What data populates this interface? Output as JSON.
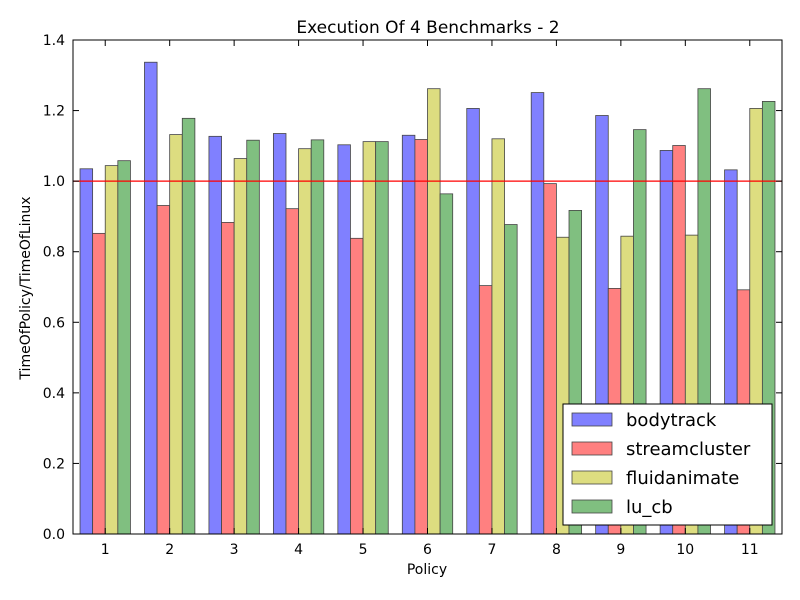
{
  "chart_data": {
    "type": "bar",
    "title": "Execution Of 4 Benchmarks - 2",
    "xlabel": "Policy",
    "ylabel": "TimeOfPolicy/TimeOfLinux",
    "ylim": [
      0,
      1.4
    ],
    "yticks": [
      "0.0",
      "0.2",
      "0.4",
      "0.6",
      "0.8",
      "1.0",
      "1.2",
      "1.4"
    ],
    "categories": [
      "1",
      "2",
      "3",
      "4",
      "5",
      "6",
      "7",
      "8",
      "9",
      "10",
      "11"
    ],
    "reference_line": {
      "y": 1.0,
      "color": "#ff0000"
    },
    "legend_position": "lower-right",
    "grid": false,
    "series": [
      {
        "name": "bodytrack",
        "color": "#8080ff",
        "values": [
          1.035,
          1.337,
          1.127,
          1.135,
          1.103,
          1.13,
          1.206,
          1.251,
          1.186,
          1.087,
          1.032
        ]
      },
      {
        "name": "streamcluster",
        "color": "#ff8080",
        "values": [
          0.852,
          0.931,
          0.883,
          0.922,
          0.838,
          1.118,
          0.704,
          0.993,
          0.696,
          1.101,
          0.692
        ]
      },
      {
        "name": "fluidanimate",
        "color": "#dddd80",
        "values": [
          1.044,
          1.132,
          1.064,
          1.092,
          1.112,
          1.262,
          1.12,
          0.841,
          0.844,
          0.847,
          1.206
        ]
      },
      {
        "name": "lu_cb",
        "color": "#80bf80",
        "values": [
          1.058,
          1.178,
          1.116,
          1.117,
          1.112,
          0.964,
          0.877,
          0.917,
          1.146,
          1.262,
          1.226
        ]
      }
    ]
  }
}
